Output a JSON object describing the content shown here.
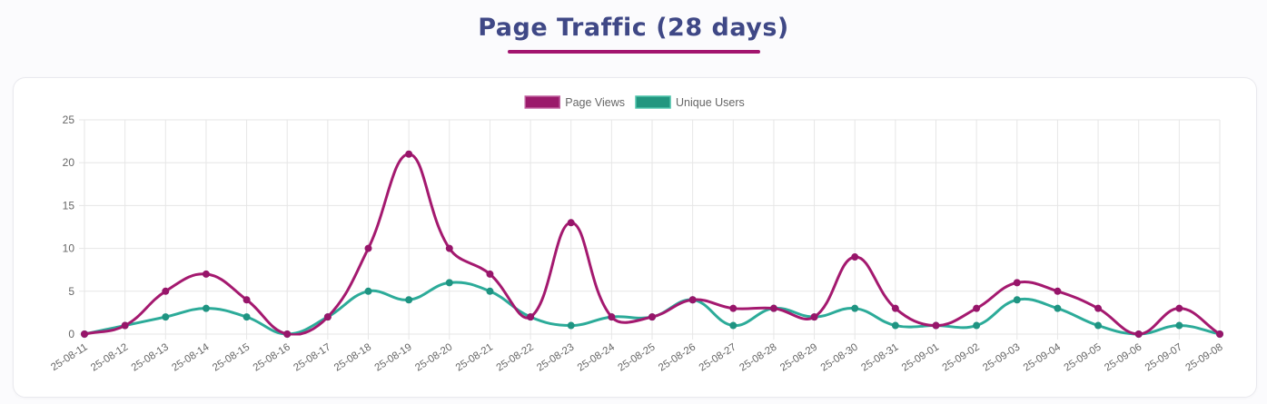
{
  "page": {
    "title": "Page Traffic (28 days)",
    "colors": {
      "title_text": "#3f4886",
      "accent_underline": "#a2146e",
      "page_bg": "#fbfbfd",
      "card_bg": "#ffffff",
      "card_border": "#e9e9ee",
      "grid": "#e6e6e6",
      "tick_text": "#666666",
      "legend_text": "#666666"
    }
  },
  "chart_data": {
    "type": "line",
    "title": "Page Traffic (28 days)",
    "x": [
      "25-08-11",
      "25-08-12",
      "25-08-13",
      "25-08-14",
      "25-08-15",
      "25-08-16",
      "25-08-17",
      "25-08-18",
      "25-08-19",
      "25-08-20",
      "25-08-21",
      "25-08-22",
      "25-08-23",
      "25-08-24",
      "25-08-25",
      "25-08-26",
      "25-08-27",
      "25-08-28",
      "25-08-29",
      "25-08-30",
      "25-08-31",
      "25-09-01",
      "25-09-02",
      "25-09-03",
      "25-09-04",
      "25-09-05",
      "25-09-06",
      "25-09-07",
      "25-09-08"
    ],
    "series": [
      {
        "name": "Page Views",
        "values": [
          0,
          1,
          5,
          7,
          4,
          0,
          2,
          10,
          21,
          10,
          7,
          2,
          13,
          2,
          2,
          4,
          3,
          3,
          2,
          9,
          3,
          1,
          3,
          6,
          5,
          3,
          0,
          3,
          0
        ],
        "line_color": "#a4196f",
        "point_color": "#97156a",
        "legend_fill": "#9b1a6b",
        "legend_border": "#c0619f"
      },
      {
        "name": "Unique Users",
        "values": [
          0,
          1,
          2,
          3,
          2,
          0,
          2,
          5,
          4,
          6,
          5,
          2,
          1,
          2,
          2,
          4,
          1,
          3,
          2,
          3,
          1,
          1,
          1,
          4,
          3,
          1,
          0,
          1,
          0
        ],
        "line_color": "#2cab99",
        "point_color": "#1f9482",
        "legend_fill": "#22967f",
        "legend_border": "#4ec3ab"
      }
    ],
    "ylim": [
      0,
      25
    ],
    "yticks": [
      0,
      5,
      10,
      15,
      20,
      25
    ],
    "grid": true,
    "legend_position": "top",
    "line_tension": 0.4,
    "x_label_rotation_deg": -33
  }
}
